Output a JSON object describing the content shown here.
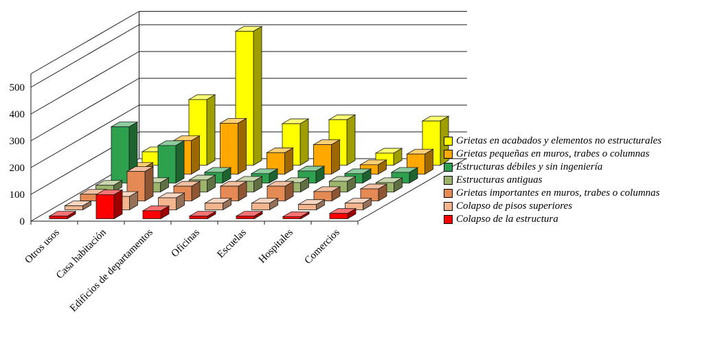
{
  "chart_data": {
    "type": "bar",
    "projection": "3d-column",
    "title": "",
    "categories": [
      "Otros usos",
      "Casa habitación",
      "Edificios de departamentos",
      "Oficinas",
      "Escuelas",
      "Hospitales",
      "Comercios"
    ],
    "series": [
      {
        "name": "Grietas en acabados y elementos no estructurales",
        "color": "#FFFF00",
        "values": [
          50,
          245,
          500,
          155,
          170,
          45,
          165
        ]
      },
      {
        "name": "Grietas pequeñas en muros, trabes o columnas",
        "color": "#FFA800",
        "values": [
          25,
          125,
          190,
          80,
          110,
          35,
          75
        ]
      },
      {
        "name": "Estructuras débiles y sin ingeniería",
        "color": "#2EA14E",
        "values": [
          210,
          140,
          40,
          35,
          45,
          35,
          40
        ]
      },
      {
        "name": "Estructuras antiguas",
        "color": "#9CB46C",
        "values": [
          25,
          35,
          45,
          40,
          35,
          40,
          35
        ]
      },
      {
        "name": "Grietas importantes en muros, trabes o columnas",
        "color": "#E58A54",
        "values": [
          25,
          110,
          55,
          55,
          55,
          35,
          45
        ]
      },
      {
        "name": "Colapso de pisos superiores",
        "color": "#F2B58E",
        "values": [
          15,
          50,
          45,
          25,
          25,
          20,
          25
        ]
      },
      {
        "name": "Colapso de la estructura",
        "color": "#FF0000",
        "values": [
          10,
          90,
          30,
          10,
          10,
          8,
          20
        ]
      }
    ],
    "y_axis": {
      "min": 0,
      "max": 550,
      "tick_interval": 100,
      "tick_labels": [
        "0",
        "100",
        "200",
        "300",
        "400",
        "500"
      ]
    },
    "legend_position": "right",
    "grid": true
  }
}
